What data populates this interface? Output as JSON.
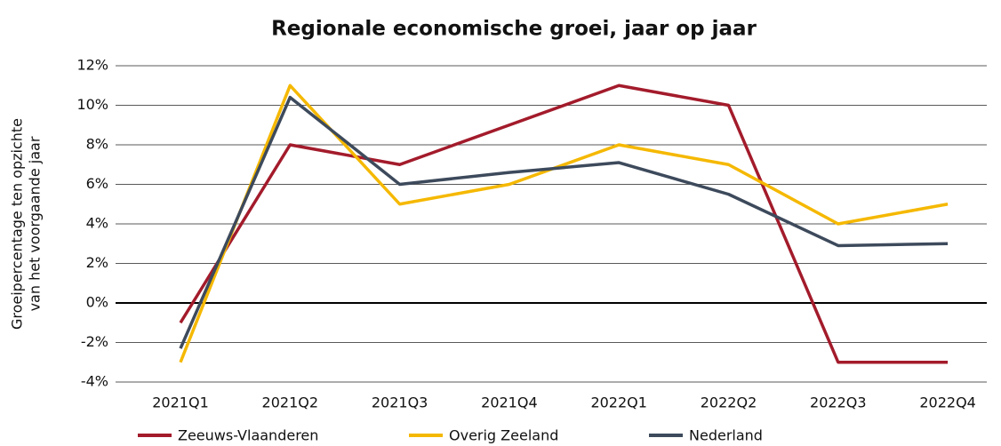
{
  "chart_data": {
    "type": "line",
    "title": "Regionale economische groei, jaar op jaar",
    "ylabel": [
      "Groeipercentage ten opzichte",
      "van het voorgaande jaar"
    ],
    "categories": [
      "2021Q1",
      "2021Q2",
      "2021Q3",
      "2021Q4",
      "2022Q1",
      "2022Q2",
      "2022Q3",
      "2022Q4"
    ],
    "series": [
      {
        "name": "Zeeuws-Vlaanderen",
        "color": "#a31b2b",
        "values": [
          -1,
          8,
          7,
          9,
          11,
          10,
          -3,
          -3
        ]
      },
      {
        "name": "Overig Zeeland",
        "color": "#f5b800",
        "values": [
          -3,
          11,
          5,
          6,
          8,
          7,
          4,
          5
        ]
      },
      {
        "name": "Nederland",
        "color": "#3d4a5c",
        "values": [
          -2.3,
          10.4,
          6,
          6.6,
          7.1,
          5.5,
          2.9,
          3.0
        ]
      }
    ],
    "ylim": [
      -4,
      12
    ],
    "yticks": [
      {
        "value": -4,
        "label": "-4%"
      },
      {
        "value": -2,
        "label": "-2%"
      },
      {
        "value": 0,
        "label": "0%"
      },
      {
        "value": 2,
        "label": "2%"
      },
      {
        "value": 4,
        "label": "4%"
      },
      {
        "value": 6,
        "label": "6%"
      },
      {
        "value": 8,
        "label": "8%"
      },
      {
        "value": 10,
        "label": "10%"
      },
      {
        "value": 12,
        "label": "12%"
      }
    ],
    "grid": true,
    "legend": "bottom"
  }
}
